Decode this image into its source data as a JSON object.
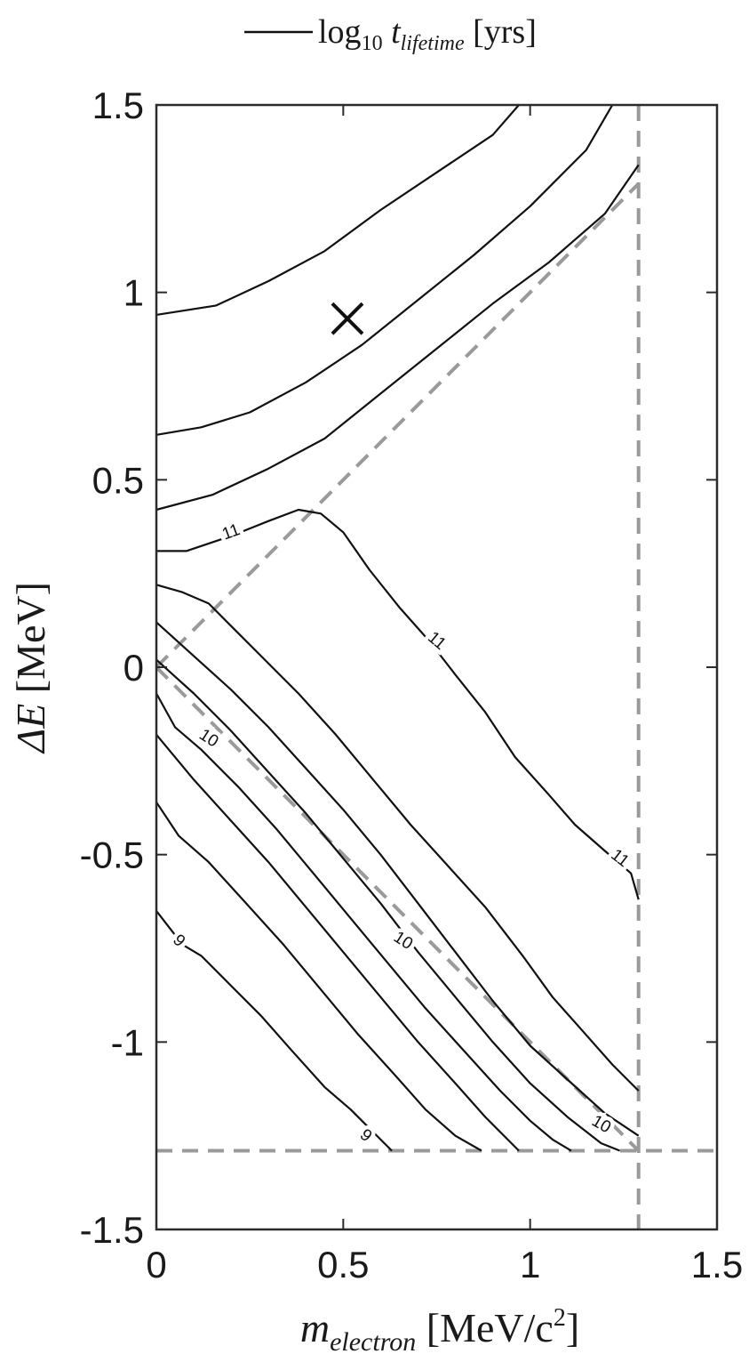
{
  "chart_data": {
    "type": "contour",
    "legend": {
      "entry_prefix": "log",
      "entry_sub": "10",
      "entry_t": "t",
      "entry_t_sub": "lifetime",
      "entry_unit": "[yrs]",
      "placement": "top-center"
    },
    "xlabel": {
      "main": "m",
      "sub": "electron",
      "unit_prefix": "[MeV/c",
      "unit_sup": "2",
      "unit_suffix": "]"
    },
    "ylabel": {
      "main": "ΔE",
      "unit": "[MeV]"
    },
    "xlim": [
      0,
      1.5
    ],
    "ylim": [
      -1.5,
      1.5
    ],
    "x_ticks": [
      {
        "value": 0,
        "label": "0"
      },
      {
        "value": 0.5,
        "label": "0.5"
      },
      {
        "value": 1,
        "label": "1"
      },
      {
        "value": 1.5,
        "label": "1.5"
      }
    ],
    "y_ticks": [
      {
        "value": 1.5,
        "label": "1.5"
      },
      {
        "value": 1,
        "label": "1"
      },
      {
        "value": 0.5,
        "label": "0.5"
      },
      {
        "value": 0,
        "label": "0"
      },
      {
        "value": -0.5,
        "label": "-0.5"
      },
      {
        "value": -1,
        "label": "-1"
      },
      {
        "value": -1.5,
        "label": "-1.5"
      }
    ],
    "grid": false,
    "contours": [
      {
        "points": [
          [
            0,
            0.94
          ],
          [
            0.16,
            0.965
          ],
          [
            0.3,
            1.03
          ],
          [
            0.45,
            1.11
          ],
          [
            0.6,
            1.22
          ],
          [
            0.75,
            1.32
          ],
          [
            0.9,
            1.42
          ],
          [
            0.97,
            1.5
          ]
        ]
      },
      {
        "points": [
          [
            0,
            0.62
          ],
          [
            0.12,
            0.64
          ],
          [
            0.25,
            0.68
          ],
          [
            0.4,
            0.76
          ],
          [
            0.55,
            0.86
          ],
          [
            0.7,
            0.98
          ],
          [
            0.85,
            1.1
          ],
          [
            1.0,
            1.23
          ],
          [
            1.15,
            1.38
          ],
          [
            1.22,
            1.5
          ]
        ]
      },
      {
        "points": [
          [
            0,
            0.42
          ],
          [
            0.15,
            0.46
          ],
          [
            0.3,
            0.53
          ],
          [
            0.45,
            0.61
          ],
          [
            0.6,
            0.73
          ],
          [
            0.75,
            0.85
          ],
          [
            0.9,
            0.97
          ],
          [
            1.05,
            1.08
          ],
          [
            1.2,
            1.21
          ],
          [
            1.29,
            1.34
          ]
        ]
      },
      {
        "points": [
          [
            0,
            0.31
          ],
          [
            0.08,
            0.31
          ],
          [
            0.2,
            0.35
          ],
          [
            0.3,
            0.39
          ],
          [
            0.38,
            0.42
          ],
          [
            0.44,
            0.41
          ],
          [
            0.5,
            0.36
          ],
          [
            0.57,
            0.26
          ],
          [
            0.65,
            0.16
          ],
          [
            0.73,
            0.07
          ],
          [
            0.8,
            -0.02
          ],
          [
            0.88,
            -0.12
          ],
          [
            0.96,
            -0.24
          ],
          [
            1.05,
            -0.34
          ],
          [
            1.12,
            -0.42
          ],
          [
            1.2,
            -0.49
          ],
          [
            1.27,
            -0.55
          ],
          [
            1.29,
            -0.62
          ]
        ]
      },
      {
        "points": [
          [
            0,
            0.22
          ],
          [
            0.07,
            0.2
          ],
          [
            0.14,
            0.17
          ],
          [
            0.2,
            0.11
          ],
          [
            0.28,
            0.03
          ],
          [
            0.38,
            -0.07
          ],
          [
            0.48,
            -0.18
          ],
          [
            0.58,
            -0.3
          ],
          [
            0.68,
            -0.42
          ],
          [
            0.78,
            -0.53
          ],
          [
            0.88,
            -0.64
          ],
          [
            0.98,
            -0.77
          ],
          [
            1.06,
            -0.88
          ],
          [
            1.14,
            -0.97
          ],
          [
            1.22,
            -1.06
          ],
          [
            1.29,
            -1.13
          ]
        ]
      },
      {
        "points": [
          [
            0,
            0.12
          ],
          [
            0.1,
            0.03
          ],
          [
            0.2,
            -0.06
          ],
          [
            0.3,
            -0.16
          ],
          [
            0.4,
            -0.27
          ],
          [
            0.5,
            -0.38
          ],
          [
            0.6,
            -0.5
          ],
          [
            0.7,
            -0.63
          ],
          [
            0.8,
            -0.76
          ],
          [
            0.9,
            -0.89
          ],
          [
            1.0,
            -1.01
          ],
          [
            1.1,
            -1.1
          ],
          [
            1.2,
            -1.19
          ],
          [
            1.29,
            -1.25
          ]
        ]
      },
      {
        "points": [
          [
            0,
            0.02
          ],
          [
            0.1,
            -0.07
          ],
          [
            0.2,
            -0.17
          ],
          [
            0.3,
            -0.28
          ],
          [
            0.4,
            -0.39
          ],
          [
            0.5,
            -0.51
          ],
          [
            0.6,
            -0.63
          ],
          [
            0.7,
            -0.76
          ],
          [
            0.8,
            -0.88
          ],
          [
            0.9,
            -1.0
          ],
          [
            1.0,
            -1.11
          ],
          [
            1.1,
            -1.2
          ],
          [
            1.19,
            -1.27
          ],
          [
            1.24,
            -1.29
          ]
        ]
      },
      {
        "points": [
          [
            0,
            -0.07
          ],
          [
            0.05,
            -0.16
          ],
          [
            0.12,
            -0.22
          ],
          [
            0.22,
            -0.32
          ],
          [
            0.32,
            -0.43
          ],
          [
            0.42,
            -0.55
          ],
          [
            0.52,
            -0.67
          ],
          [
            0.62,
            -0.79
          ],
          [
            0.72,
            -0.91
          ],
          [
            0.82,
            -1.02
          ],
          [
            0.92,
            -1.13
          ],
          [
            1.0,
            -1.21
          ],
          [
            1.06,
            -1.26
          ],
          [
            1.11,
            -1.29
          ]
        ]
      },
      {
        "points": [
          [
            0,
            -0.18
          ],
          [
            0.1,
            -0.3
          ],
          [
            0.2,
            -0.41
          ],
          [
            0.3,
            -0.52
          ],
          [
            0.4,
            -0.64
          ],
          [
            0.5,
            -0.76
          ],
          [
            0.6,
            -0.88
          ],
          [
            0.7,
            -1.0
          ],
          [
            0.8,
            -1.11
          ],
          [
            0.88,
            -1.2
          ],
          [
            0.94,
            -1.26
          ],
          [
            0.97,
            -1.29
          ]
        ]
      },
      {
        "points": [
          [
            0,
            -0.36
          ],
          [
            0.06,
            -0.45
          ],
          [
            0.14,
            -0.52
          ],
          [
            0.24,
            -0.63
          ],
          [
            0.34,
            -0.74
          ],
          [
            0.44,
            -0.86
          ],
          [
            0.54,
            -0.98
          ],
          [
            0.64,
            -1.09
          ],
          [
            0.72,
            -1.18
          ],
          [
            0.8,
            -1.25
          ],
          [
            0.87,
            -1.29
          ]
        ]
      },
      {
        "points": [
          [
            0,
            -0.65
          ],
          [
            0.07,
            -0.74
          ],
          [
            0.12,
            -0.77
          ],
          [
            0.2,
            -0.85
          ],
          [
            0.28,
            -0.93
          ],
          [
            0.36,
            -1.02
          ],
          [
            0.45,
            -1.12
          ],
          [
            0.52,
            -1.18
          ],
          [
            0.58,
            -1.24
          ],
          [
            0.63,
            -1.29
          ]
        ]
      }
    ],
    "contour_labels": [
      {
        "text": "11",
        "x": 0.2,
        "y": 0.36,
        "rot": -20
      },
      {
        "text": "11",
        "x": 0.75,
        "y": 0.07,
        "rot": 40
      },
      {
        "text": "11",
        "x": 1.24,
        "y": -0.51,
        "rot": 38
      },
      {
        "text": "10",
        "x": 0.14,
        "y": -0.19,
        "rot": 33
      },
      {
        "text": "10",
        "x": 0.66,
        "y": -0.73,
        "rot": 33
      },
      {
        "text": "10",
        "x": 1.19,
        "y": -1.22,
        "rot": 30
      },
      {
        "text": "9",
        "x": 0.06,
        "y": -0.73,
        "rot": 45
      },
      {
        "text": "9",
        "x": 0.56,
        "y": -1.25,
        "rot": 40
      }
    ],
    "reference_lines": [
      {
        "points": [
          [
            0,
            0
          ],
          [
            1.29,
            1.29
          ]
        ]
      },
      {
        "points": [
          [
            0,
            0
          ],
          [
            1.29,
            -1.29
          ]
        ]
      },
      {
        "points": [
          [
            1.29,
            1.5
          ],
          [
            1.29,
            -1.5
          ]
        ]
      },
      {
        "points": [
          [
            0,
            -1.29
          ],
          [
            1.5,
            -1.29
          ]
        ]
      }
    ],
    "marker": {
      "x": 0.511,
      "y": 0.93,
      "symbol": "x"
    },
    "colors": {
      "contour": "#111111",
      "reference": "#9a9a9a",
      "axes": "#2b2b2b"
    }
  }
}
